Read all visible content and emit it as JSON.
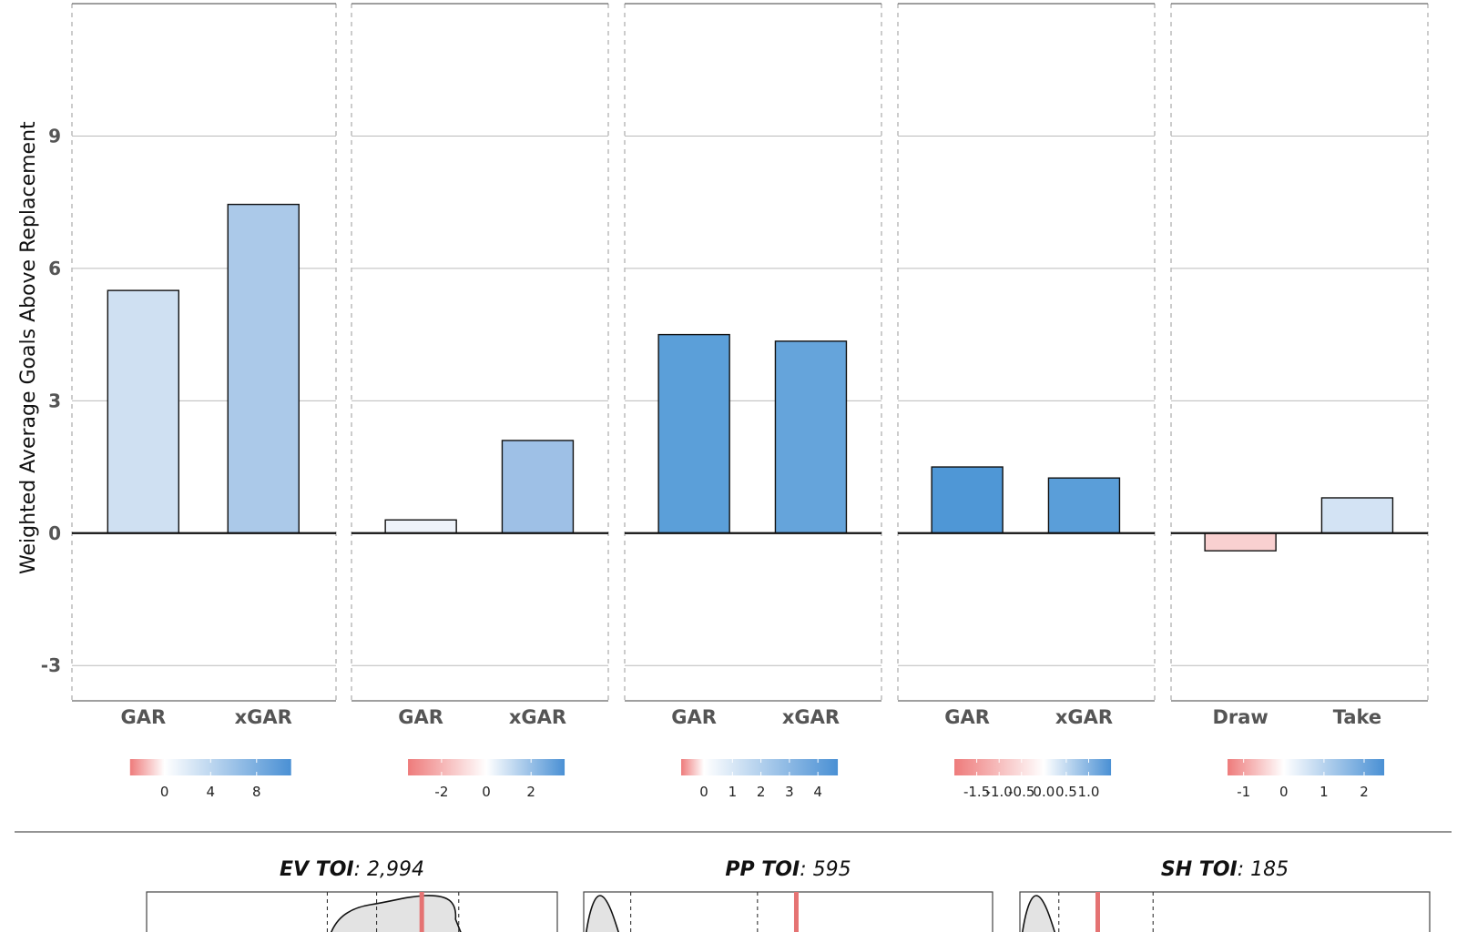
{
  "chart_data": {
    "type": "bar",
    "ylabel": "Weighted Average Goals Above Replacement",
    "ylim": [
      -3.8,
      12
    ],
    "yticks": [
      -3,
      0,
      3,
      6,
      9
    ],
    "panels": [
      {
        "name": "panel-1",
        "categories": [
          "GAR",
          "xGAR"
        ],
        "values": [
          5.5,
          7.45
        ],
        "colors": [
          "#cfe0f2",
          "#abc9e9"
        ],
        "legend": {
          "min": -3,
          "max": 11,
          "ticks": [
            0,
            4,
            8
          ],
          "labels": [
            "0",
            "4",
            "8"
          ]
        }
      },
      {
        "name": "panel-2",
        "categories": [
          "GAR",
          "xGAR"
        ],
        "values": [
          0.3,
          2.1
        ],
        "colors": [
          "#eef3fa",
          "#9ec0e6"
        ],
        "legend": {
          "min": -3.5,
          "max": 3.5,
          "ticks": [
            -2,
            0,
            2
          ],
          "labels": [
            "-2",
            "0",
            "2"
          ]
        }
      },
      {
        "name": "panel-3",
        "categories": [
          "GAR",
          "xGAR"
        ],
        "values": [
          4.5,
          4.35
        ],
        "colors": [
          "#5b9fd9",
          "#65a4db"
        ],
        "legend": {
          "min": -0.8,
          "max": 4.7,
          "ticks": [
            0,
            1,
            2,
            3,
            4
          ],
          "labels": [
            "0",
            "1",
            "2",
            "3",
            "4"
          ]
        }
      },
      {
        "name": "panel-4",
        "categories": [
          "GAR",
          "xGAR"
        ],
        "values": [
          1.5,
          1.25
        ],
        "colors": [
          "#4f97d6",
          "#5a9ed9"
        ],
        "legend": {
          "min": -2.0,
          "max": 1.5,
          "ticks": [
            -1.5,
            -1.0,
            -0.5,
            0.0,
            0.5,
            1.0
          ],
          "labels": [
            "-1.5",
            "-1.0",
            "-0.5",
            "0.0",
            "0.5",
            "1.0"
          ]
        }
      },
      {
        "name": "panel-5",
        "categories": [
          "Draw",
          "Take"
        ],
        "values": [
          -0.4,
          0.8
        ],
        "colors": [
          "#f9d0d0",
          "#d3e3f4"
        ],
        "legend": {
          "min": -1.4,
          "max": 2.5,
          "ticks": [
            -1,
            0,
            1,
            2
          ],
          "labels": [
            "-1",
            "0",
            "1",
            "2"
          ]
        }
      }
    ],
    "toi": [
      {
        "label": "EV TOI",
        "value": "2,994",
        "marker_frac": 0.67,
        "dashed_fracs": [
          0.44,
          0.56,
          0.76
        ],
        "curve": "broad"
      },
      {
        "label": "PP TOI",
        "value": "595",
        "marker_frac": 0.52,
        "dashed_fracs": [
          0.115,
          0.425
        ],
        "curve": "left-peak"
      },
      {
        "label": "SH TOI",
        "value": "185",
        "marker_frac": 0.19,
        "dashed_fracs": [
          0.095,
          0.325
        ],
        "curve": "left-peak"
      }
    ]
  },
  "colors": {
    "negative": "#ee7b7b",
    "neutral": "#ffffff",
    "positive": "#4a90d4",
    "marker": "#e57373",
    "grid": "#bbbbbb",
    "zero_line": "#111111"
  }
}
